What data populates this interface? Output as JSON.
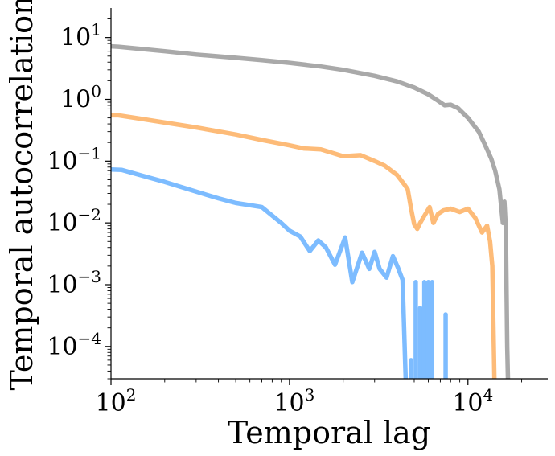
{
  "chart_data": {
    "type": "line",
    "title": "",
    "xlabel": "Temporal lag",
    "ylabel": "Temporal autocorrelation",
    "x_scale": "log",
    "y_scale": "log",
    "xlim": [
      100,
      28000
    ],
    "ylim": [
      3e-05,
      30
    ],
    "x_ticks": [
      {
        "base": "10",
        "exp": "2",
        "value": 100
      },
      {
        "base": "10",
        "exp": "3",
        "value": 1000
      },
      {
        "base": "10",
        "exp": "4",
        "value": 10000
      }
    ],
    "y_ticks": [
      {
        "base": "10",
        "exp": "1",
        "value": 10
      },
      {
        "base": "10",
        "exp": "0",
        "value": 1
      },
      {
        "base": "10",
        "exp": "−1",
        "value": 0.1
      },
      {
        "base": "10",
        "exp": "−2",
        "value": 0.01
      },
      {
        "base": "10",
        "exp": "−3",
        "value": 0.001
      },
      {
        "base": "10",
        "exp": "−4",
        "value": 0.0001
      }
    ],
    "grid": false,
    "legend": "none",
    "series": [
      {
        "color": "#a9a9a9",
        "points": [
          [
            100,
            7.2
          ],
          [
            110,
            7.1
          ],
          [
            150,
            6.5
          ],
          [
            200,
            6.0
          ],
          [
            300,
            5.3
          ],
          [
            500,
            4.7
          ],
          [
            700,
            4.3
          ],
          [
            1000,
            3.9
          ],
          [
            1500,
            3.4
          ],
          [
            2000,
            3.0
          ],
          [
            3000,
            2.4
          ],
          [
            4000,
            1.95
          ],
          [
            5000,
            1.55
          ],
          [
            6000,
            1.2
          ],
          [
            6800,
            0.95
          ],
          [
            7400,
            0.8
          ],
          [
            8000,
            0.82
          ],
          [
            8800,
            0.72
          ],
          [
            10000,
            0.5
          ],
          [
            11500,
            0.3
          ],
          [
            12500,
            0.18
          ],
          [
            13500,
            0.11
          ],
          [
            14200,
            0.07
          ],
          [
            15000,
            0.035
          ],
          [
            15700,
            0.01
          ],
          [
            16000,
            0.022
          ],
          [
            16300,
            0.008
          ],
          [
            16600,
            0.0001
          ],
          [
            16800,
            2e-05
          ]
        ]
      },
      {
        "color": "#fdbb78",
        "points": [
          [
            100,
            0.55
          ],
          [
            110,
            0.55
          ],
          [
            150,
            0.48
          ],
          [
            200,
            0.42
          ],
          [
            300,
            0.35
          ],
          [
            500,
            0.27
          ],
          [
            700,
            0.22
          ],
          [
            1000,
            0.18
          ],
          [
            1200,
            0.16
          ],
          [
            1500,
            0.155
          ],
          [
            2000,
            0.12
          ],
          [
            2500,
            0.125
          ],
          [
            3000,
            0.1
          ],
          [
            3400,
            0.085
          ],
          [
            4000,
            0.06
          ],
          [
            4400,
            0.042
          ],
          [
            4600,
            0.035
          ],
          [
            4800,
            0.017
          ],
          [
            5000,
            0.0095
          ],
          [
            5200,
            0.008
          ],
          [
            5400,
            0.01
          ],
          [
            5700,
            0.013
          ],
          [
            6100,
            0.018
          ],
          [
            6400,
            0.01
          ],
          [
            6800,
            0.014
          ],
          [
            7300,
            0.016
          ],
          [
            8000,
            0.017
          ],
          [
            9000,
            0.015
          ],
          [
            10000,
            0.017
          ],
          [
            11000,
            0.012
          ],
          [
            12000,
            0.007
          ],
          [
            12800,
            0.009
          ],
          [
            13300,
            0.005
          ],
          [
            13700,
            0.002
          ],
          [
            13900,
            0.0002
          ],
          [
            14100,
            2e-05
          ]
        ]
      },
      {
        "color": "#7dbcff",
        "points": [
          [
            100,
            0.073
          ],
          [
            115,
            0.072
          ],
          [
            150,
            0.058
          ],
          [
            200,
            0.046
          ],
          [
            300,
            0.032
          ],
          [
            400,
            0.025
          ],
          [
            500,
            0.021
          ],
          [
            700,
            0.018
          ],
          [
            900,
            0.01
          ],
          [
            1000,
            0.0075
          ],
          [
            1150,
            0.006
          ],
          [
            1300,
            0.0035
          ],
          [
            1450,
            0.0052
          ],
          [
            1600,
            0.004
          ],
          [
            1800,
            0.0021
          ],
          [
            2050,
            0.0058
          ],
          [
            2250,
            0.0011
          ],
          [
            2550,
            0.0033
          ],
          [
            2800,
            0.0018
          ],
          [
            3000,
            0.0034
          ],
          [
            3200,
            0.0018
          ],
          [
            3500,
            0.0013
          ],
          [
            3800,
            0.0029
          ],
          [
            4050,
            0.0019
          ],
          [
            4300,
            0.0012
          ],
          [
            4500,
            2e-05
          ]
        ]
      }
    ],
    "fragments": [
      {
        "color": "#7dbcff",
        "x": 4800,
        "ylow": 2e-05,
        "yhigh": 6e-05
      },
      {
        "color": "#7dbcff",
        "x": 5100,
        "ylow": 2e-05,
        "yhigh": 0.0011
      },
      {
        "color": "#7dbcff",
        "x": 5400,
        "ylow": 2e-05,
        "yhigh": 0.00042
      },
      {
        "color": "#7dbcff",
        "x": 5700,
        "ylow": 2e-05,
        "yhigh": 0.0011
      },
      {
        "color": "#7dbcff",
        "x": 6000,
        "ylow": 2e-05,
        "yhigh": 0.0011
      },
      {
        "color": "#7dbcff",
        "x": 6300,
        "ylow": 2e-05,
        "yhigh": 0.0011
      },
      {
        "color": "#7dbcff",
        "x": 7500,
        "ylow": 2e-05,
        "yhigh": 0.00033
      }
    ]
  }
}
